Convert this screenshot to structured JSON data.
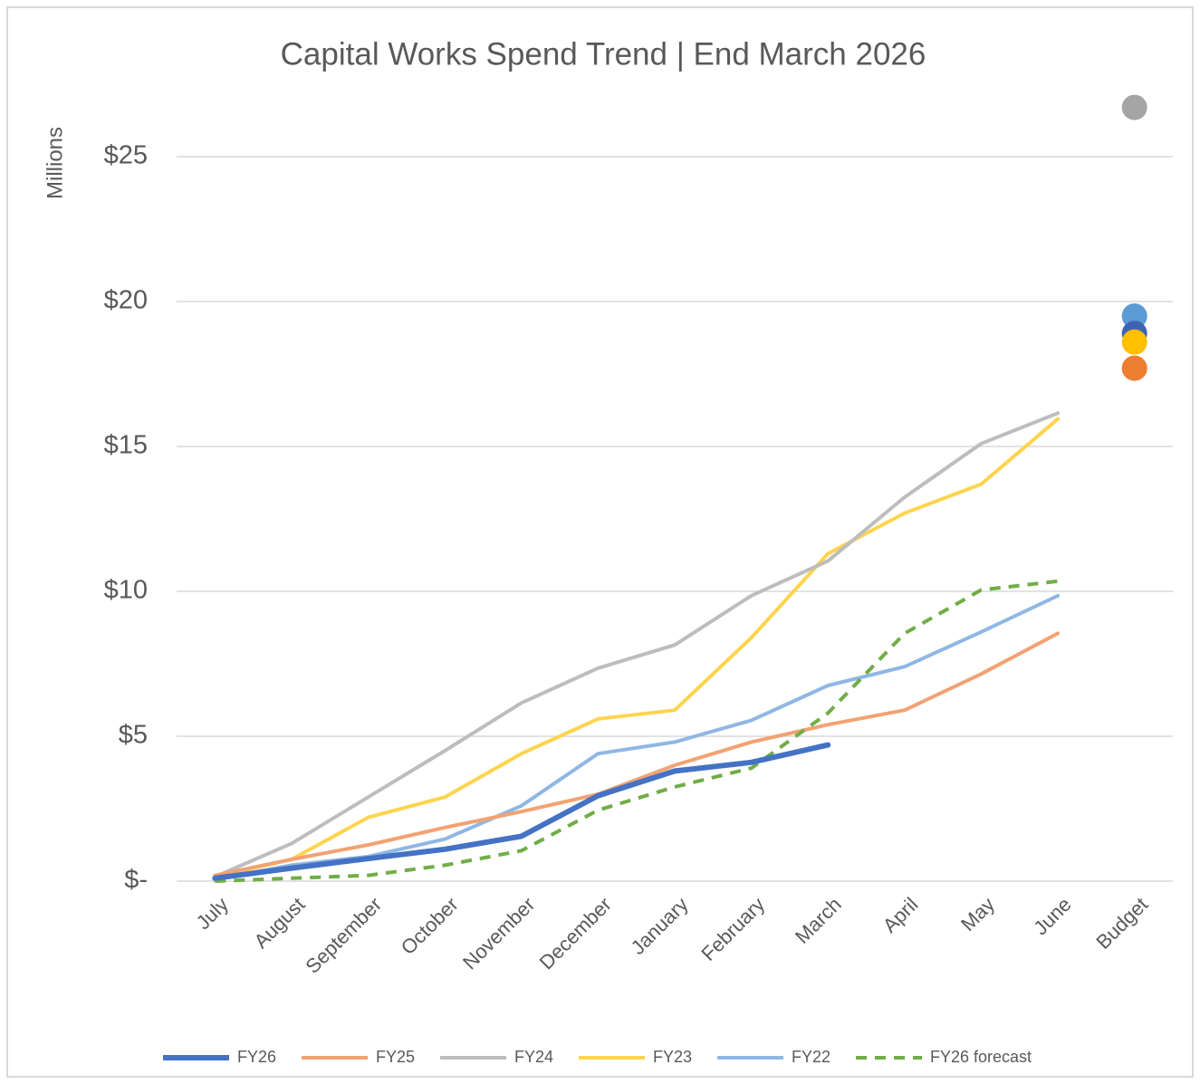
{
  "chart_data": {
    "type": "line",
    "title": "Capital Works Spend Trend | End March 2026",
    "y_label": "Millions",
    "categories": [
      "July",
      "August",
      "September",
      "October",
      "November",
      "December",
      "January",
      "February",
      "March",
      "April",
      "May",
      "June",
      "Budget"
    ],
    "ylim": [
      0,
      28
    ],
    "yticks": [
      {
        "value": 0,
        "label": "$-"
      },
      {
        "value": 5,
        "label": "$5"
      },
      {
        "value": 10,
        "label": "$10"
      },
      {
        "value": 15,
        "label": "$15"
      },
      {
        "value": 20,
        "label": "$20"
      },
      {
        "value": 25,
        "label": "$25"
      }
    ],
    "grid": true,
    "legend": "bottom",
    "series": [
      {
        "name": "FY26",
        "color": "#4472c4",
        "budget_color": "#3e63b3",
        "width": 6,
        "dashed": false,
        "values": [
          0.1,
          0.45,
          0.78,
          1.1,
          1.55,
          2.95,
          3.8,
          4.1,
          4.7,
          null,
          null,
          null,
          null
        ],
        "budget": 18.9
      },
      {
        "name": "FY25",
        "color": "#f2a272",
        "budget_color": "#ed7d31",
        "width": 4,
        "dashed": false,
        "values": [
          0.2,
          0.75,
          1.25,
          1.85,
          2.4,
          3.0,
          4.0,
          4.8,
          5.4,
          5.9,
          7.15,
          8.55,
          null
        ],
        "budget": 17.7
      },
      {
        "name": "FY24",
        "color": "#bdbdbd",
        "budget_color": "#a5a5a5",
        "width": 4,
        "dashed": false,
        "values": [
          0.15,
          1.3,
          2.9,
          4.5,
          6.15,
          7.35,
          8.15,
          9.85,
          11.05,
          13.25,
          15.1,
          16.15,
          null
        ],
        "budget": 26.7
      },
      {
        "name": "FY23",
        "color": "#ffd44d",
        "budget_color": "#ffc000",
        "width": 4,
        "dashed": false,
        "values": [
          0.15,
          0.75,
          2.2,
          2.9,
          4.4,
          5.6,
          5.9,
          8.4,
          11.3,
          12.7,
          13.7,
          15.95,
          null
        ],
        "budget": 18.6
      },
      {
        "name": "FY22",
        "color": "#8fb7e4",
        "budget_color": "#5b9bd5",
        "width": 4,
        "dashed": false,
        "values": [
          0.05,
          0.55,
          0.85,
          1.45,
          2.6,
          4.4,
          4.8,
          5.55,
          6.75,
          7.4,
          8.6,
          9.85,
          null
        ],
        "budget": 19.5
      },
      {
        "name": "FY26 forecast",
        "color": "#70ad47",
        "budget_color": null,
        "width": 4,
        "dashed": true,
        "values": [
          0,
          0.1,
          0.2,
          0.55,
          1.05,
          2.45,
          3.25,
          3.9,
          5.8,
          8.55,
          10.05,
          10.35,
          null
        ],
        "budget": null
      }
    ]
  }
}
